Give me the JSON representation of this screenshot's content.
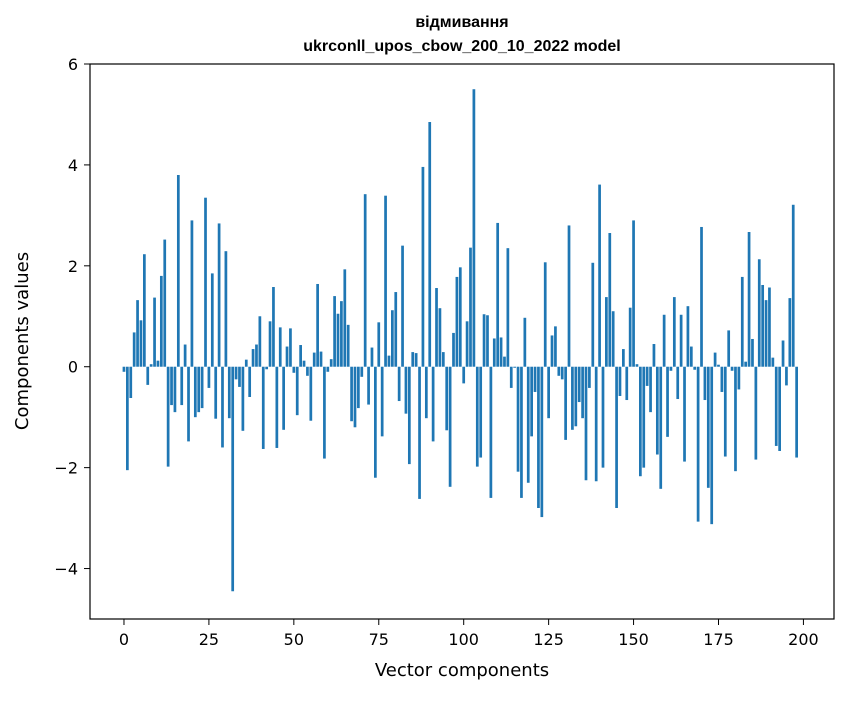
{
  "chart_data": {
    "type": "bar",
    "title_line1": "відмивання",
    "title_line2": "ukrconll_upos_cbow_200_10_2022 model",
    "xlabel": "Vector components",
    "ylabel": "Components values",
    "xlim": [
      -10,
      209
    ],
    "ylim": [
      -5,
      6
    ],
    "x_ticks": [
      0,
      25,
      50,
      75,
      100,
      125,
      150,
      175,
      200
    ],
    "x_tick_labels": [
      "0",
      "25",
      "50",
      "75",
      "100",
      "125",
      "150",
      "175",
      "200"
    ],
    "y_ticks": [
      -4,
      -2,
      0,
      2,
      4,
      6
    ],
    "y_tick_labels": [
      "−4",
      "−2",
      "0",
      "2",
      "4",
      "6"
    ],
    "bar_color": "#1f77b4",
    "grid": false,
    "values": [
      -0.1,
      -2.05,
      -0.62,
      0.68,
      1.32,
      0.92,
      2.23,
      -0.36,
      0.05,
      1.37,
      0.12,
      1.8,
      2.52,
      -1.98,
      -0.76,
      -0.9,
      3.8,
      -0.76,
      0.44,
      -1.48,
      2.9,
      -1.0,
      -0.9,
      -0.82,
      3.35,
      -0.42,
      1.85,
      -1.03,
      2.84,
      -1.6,
      2.29,
      -1.02,
      -4.45,
      -0.25,
      -0.4,
      -1.27,
      0.14,
      -0.6,
      0.35,
      0.44,
      1.0,
      -1.63,
      -0.05,
      0.9,
      1.58,
      -1.61,
      0.78,
      -1.25,
      0.4,
      0.76,
      -0.12,
      -0.96,
      0.43,
      0.12,
      -0.18,
      -1.07,
      0.28,
      1.64,
      0.3,
      -1.82,
      -0.1,
      0.15,
      1.4,
      1.05,
      1.3,
      1.93,
      0.83,
      -1.08,
      -1.2,
      -0.82,
      -0.2,
      3.42,
      -0.75,
      0.38,
      -2.2,
      0.88,
      -1.38,
      3.39,
      0.22,
      1.12,
      1.48,
      -0.68,
      2.4,
      -0.93,
      -1.93,
      0.29,
      0.27,
      -2.62,
      3.96,
      -1.02,
      4.85,
      -1.48,
      1.56,
      1.16,
      0.29,
      -1.26,
      -2.38,
      0.67,
      1.78,
      1.97,
      -0.33,
      0.9,
      2.36,
      5.5,
      -1.98,
      -1.8,
      1.04,
      1.02,
      -2.6,
      0.56,
      2.85,
      0.58,
      0.2,
      2.35,
      -0.42,
      -0.02,
      -2.08,
      -2.6,
      0.97,
      -2.3,
      -1.38,
      -0.5,
      -2.8,
      -2.98,
      2.07,
      -1.02,
      0.62,
      0.8,
      -0.18,
      -0.25,
      -1.45,
      2.8,
      -1.25,
      -1.18,
      -0.7,
      -1.02,
      -2.25,
      -0.42,
      2.06,
      -2.27,
      3.61,
      -2.0,
      1.38,
      2.65,
      1.1,
      -2.8,
      -0.58,
      0.35,
      -0.66,
      1.17,
      2.9,
      0.05,
      -2.17,
      -2.0,
      -0.38,
      -0.9,
      0.45,
      -1.74,
      -2.42,
      1.03,
      -1.39,
      -0.08,
      1.38,
      -0.64,
      1.03,
      -1.88,
      1.2,
      0.4,
      -0.06,
      -3.07,
      2.77,
      -0.66,
      -2.4,
      -3.12,
      0.28,
      0.04,
      -0.5,
      -1.78,
      0.72,
      -0.08,
      -2.07,
      -0.45,
      1.78,
      0.1,
      2.67,
      0.55,
      -1.84,
      2.13,
      1.62,
      1.32,
      1.57,
      0.18,
      -1.57,
      -1.67,
      0.52,
      -0.37,
      1.36,
      3.21,
      -1.8
    ]
  }
}
